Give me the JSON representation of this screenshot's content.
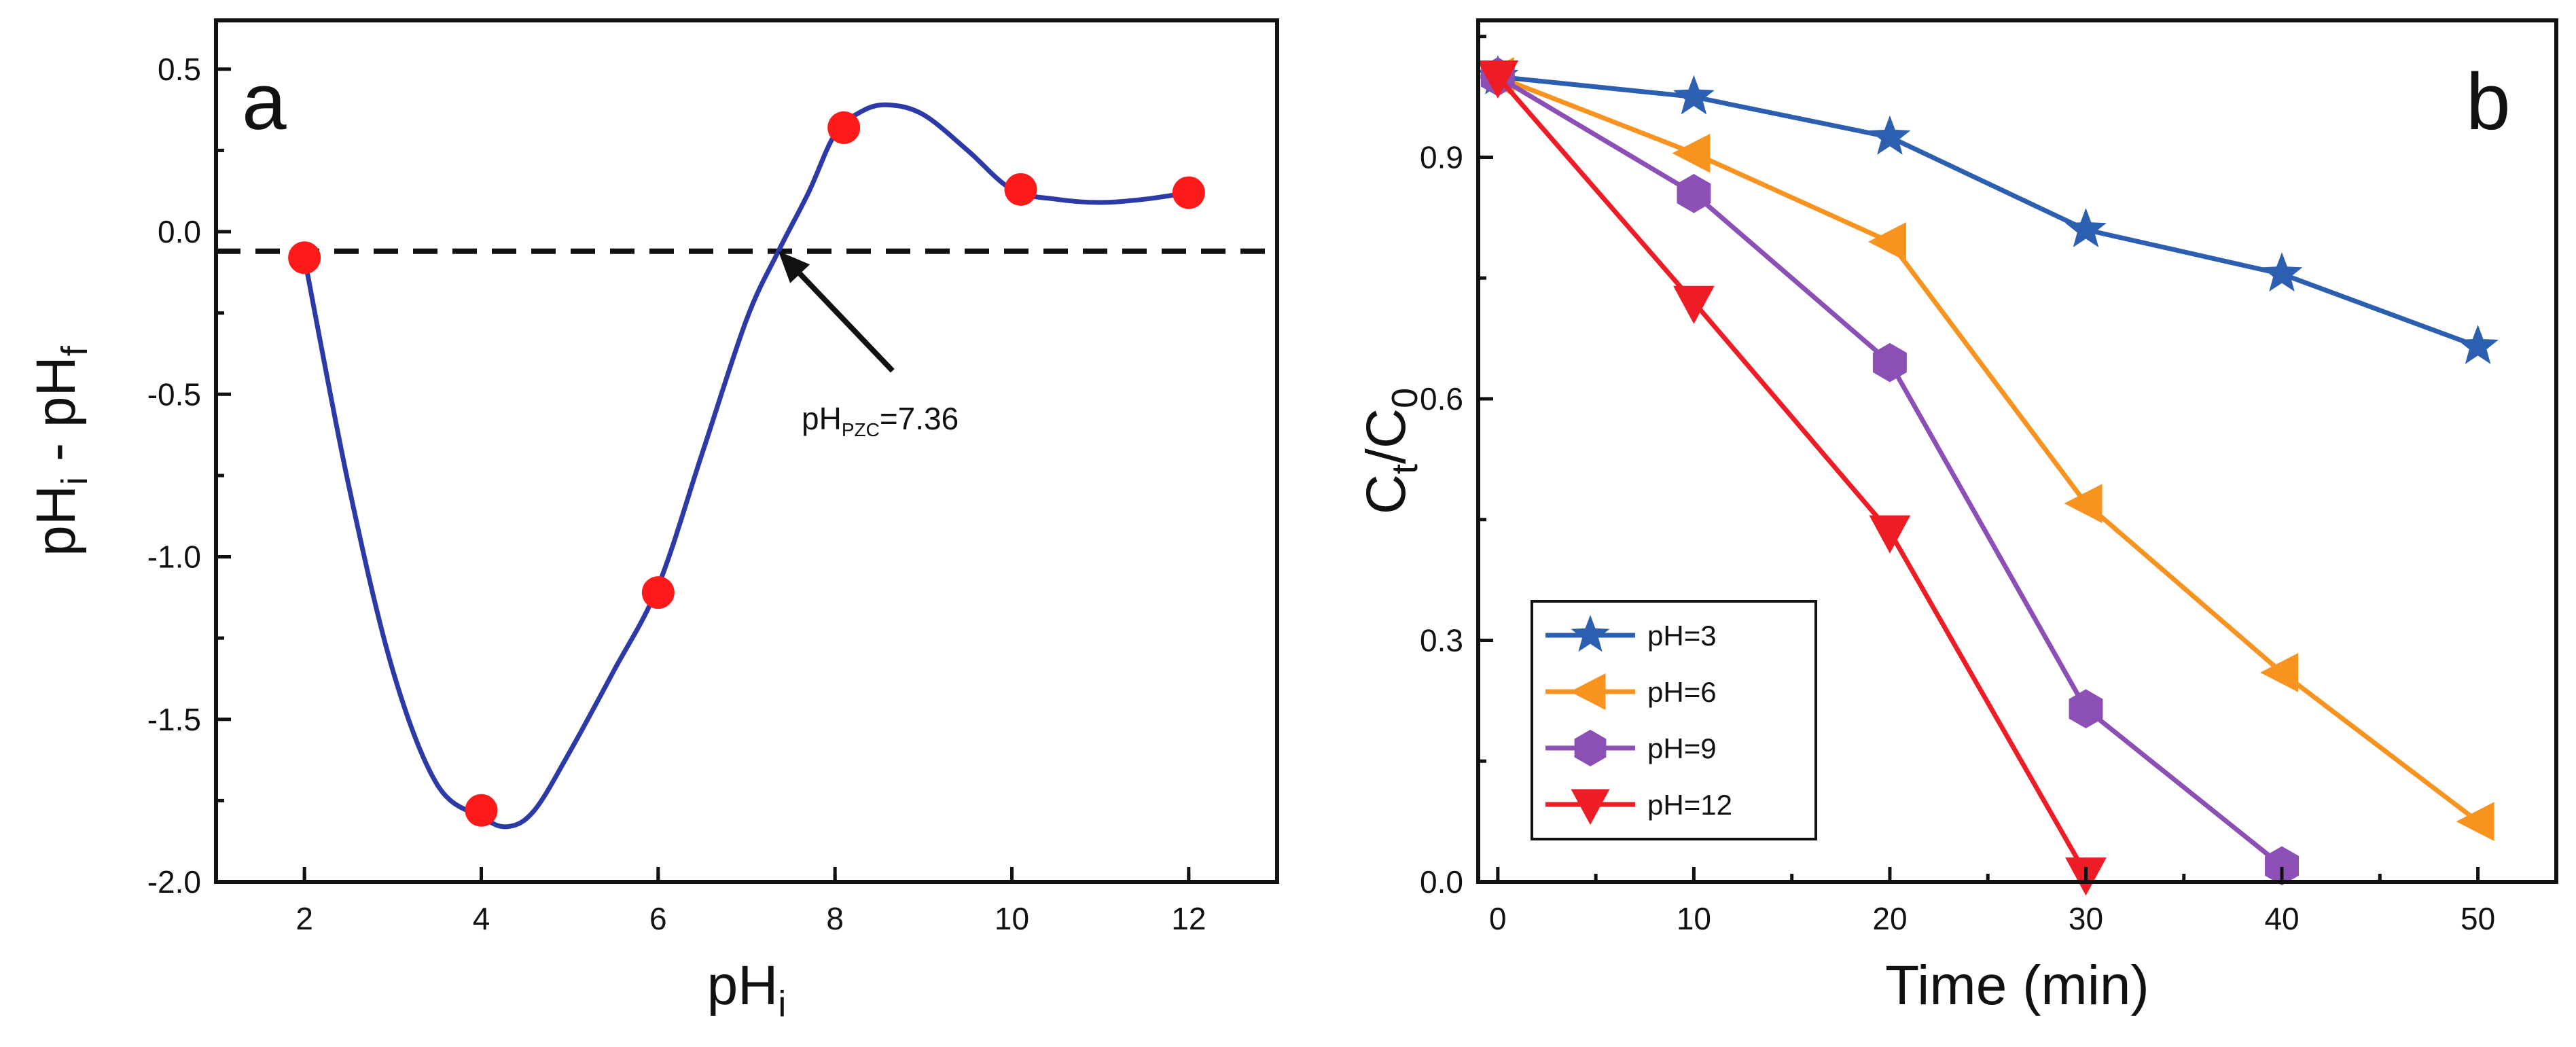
{
  "chart_data": [
    {
      "panel_label": "a",
      "type": "scatter",
      "xlabel": {
        "main": "pH",
        "sub": "i"
      },
      "ylabel": {
        "a": "pH",
        "a_sub": "i",
        "mid": " - pH",
        "b_sub": "f"
      },
      "xlim": [
        1,
        13
      ],
      "ylim": [
        -2.0,
        0.65
      ],
      "xticks": [
        2,
        4,
        6,
        8,
        10,
        12
      ],
      "xtick_labels": [
        "2",
        "4",
        "6",
        "8",
        "10",
        "12"
      ],
      "yticks": [
        0.5,
        0.0,
        -0.5,
        -1.0,
        -1.5,
        -2.0
      ],
      "ytick_labels": [
        "0.5",
        "0.0",
        "-0.5",
        "-1.0",
        "-1.5",
        "-2.0"
      ],
      "points": {
        "x": [
          2,
          4,
          6,
          8.1,
          10.1,
          12
        ],
        "y": [
          -0.08,
          -1.78,
          -1.11,
          0.32,
          0.13,
          0.12
        ]
      },
      "fit_curve": {
        "x": [
          2,
          2.5,
          3,
          3.5,
          4,
          4.3,
          4.6,
          5,
          5.5,
          6,
          6.5,
          7,
          7.36,
          7.7,
          8,
          8.3,
          8.6,
          9,
          9.5,
          10,
          10.5,
          11,
          11.5,
          12
        ],
        "y": [
          -0.08,
          -0.78,
          -1.35,
          -1.7,
          -1.8,
          -1.83,
          -1.78,
          -1.6,
          -1.35,
          -1.09,
          -0.68,
          -0.27,
          -0.06,
          0.12,
          0.3,
          0.37,
          0.39,
          0.36,
          0.25,
          0.13,
          0.1,
          0.09,
          0.1,
          0.12
        ]
      },
      "point_color": "#ff1a1a",
      "curve_color": "#2b3aa6",
      "reference_line_y": -0.06,
      "annotation": {
        "prefix": "pH",
        "sub": "PZC",
        "suffix": "=7.36",
        "target_x": 7.36,
        "target_y": -0.06
      }
    },
    {
      "panel_label": "b",
      "type": "line",
      "xlabel": "Time (min)",
      "ylabel": {
        "main": "C",
        "sub1": "t",
        "mid": "/C",
        "sub2": "0"
      },
      "xlim": [
        -1,
        54
      ],
      "ylim": [
        0,
        1.07
      ],
      "xticks": [
        0,
        10,
        20,
        30,
        40,
        50
      ],
      "xtick_labels": [
        "0",
        "10",
        "20",
        "30",
        "40",
        "50"
      ],
      "yticks": [
        0.0,
        0.3,
        0.6,
        0.9
      ],
      "ytick_labels": [
        "0.0",
        "0.3",
        "0.6",
        "0.9"
      ],
      "legend_position": "bottom-left",
      "series": [
        {
          "name": "pH=3",
          "color": "#2d5fb0",
          "marker": "star",
          "x": [
            0,
            10,
            20,
            30,
            40,
            50
          ],
          "values": [
            1.0,
            0.975,
            0.925,
            0.81,
            0.755,
            0.665
          ]
        },
        {
          "name": "pH=6",
          "color": "#f7931e",
          "marker": "triangle-left",
          "x": [
            0,
            10,
            20,
            30,
            40,
            50
          ],
          "values": [
            1.0,
            0.905,
            0.795,
            0.47,
            0.26,
            0.075
          ]
        },
        {
          "name": "pH=9",
          "color": "#8b4fb5",
          "marker": "hexagon",
          "x": [
            0,
            10,
            20,
            30,
            40
          ],
          "values": [
            1.0,
            0.855,
            0.645,
            0.215,
            0.02
          ]
        },
        {
          "name": "pH=12",
          "color": "#ee1c24",
          "marker": "triangle-down",
          "x": [
            0,
            10,
            20,
            30
          ],
          "values": [
            1.0,
            0.72,
            0.435,
            0.01
          ]
        }
      ]
    }
  ]
}
